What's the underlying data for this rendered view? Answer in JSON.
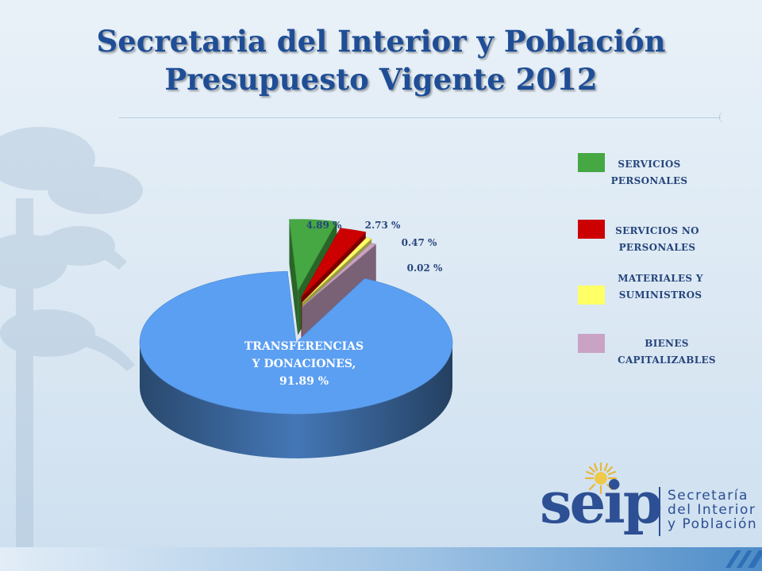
{
  "header": {
    "title_line1": "Secretaria del Interior y Población",
    "title_line2": "Presupuesto Vigente 2012"
  },
  "chart_data": {
    "type": "pie",
    "slices": [
      {
        "label": "TRANSFERENCIAS Y DONACIONES",
        "value": 91.89,
        "color": "#5b9ff2",
        "data_label": "91.89 %",
        "exploded": false
      },
      {
        "label": "SERVICIOS PERSONALES",
        "value": 4.89,
        "color": "#45a843",
        "data_label": "4.89 %",
        "exploded": true
      },
      {
        "label": "SERVICIOS NO PERSONALES",
        "value": 2.73,
        "color": "#cc0000",
        "data_label": "2.73 %",
        "exploded": true
      },
      {
        "label": "MATERIALES Y SUMINISTROS",
        "value": 0.47,
        "color": "#ffff66",
        "data_label": "0.47 %",
        "exploded": true
      },
      {
        "label": "BIENES CAPITALIZABLES",
        "value": 0.02,
        "color": "#c9a2c4",
        "data_label": "0.02 %",
        "exploded": true
      }
    ],
    "main_label": {
      "line1": "TRANSFERENCIAS",
      "line2": "Y DONACIONES,",
      "line3": "91.89 %"
    },
    "legend_position": "right",
    "three_d": true
  },
  "legend": [
    {
      "line1": "SERVICIOS",
      "line2": "PERSONALES",
      "color": "#45a843"
    },
    {
      "line1": "SERVICIOS NO",
      "line2": "PERSONALES",
      "color": "#cc0000"
    },
    {
      "line1": "MATERIALES Y",
      "line2": "SUMINISTROS",
      "color": "#ffff66"
    },
    {
      "line1": "BIENES",
      "line2": "CAPITALIZABLES",
      "color": "#c9a2c4"
    }
  ],
  "logo": {
    "word": "seip",
    "line1": "Secretaría",
    "line2": "del Interior",
    "line3": "y Población"
  }
}
